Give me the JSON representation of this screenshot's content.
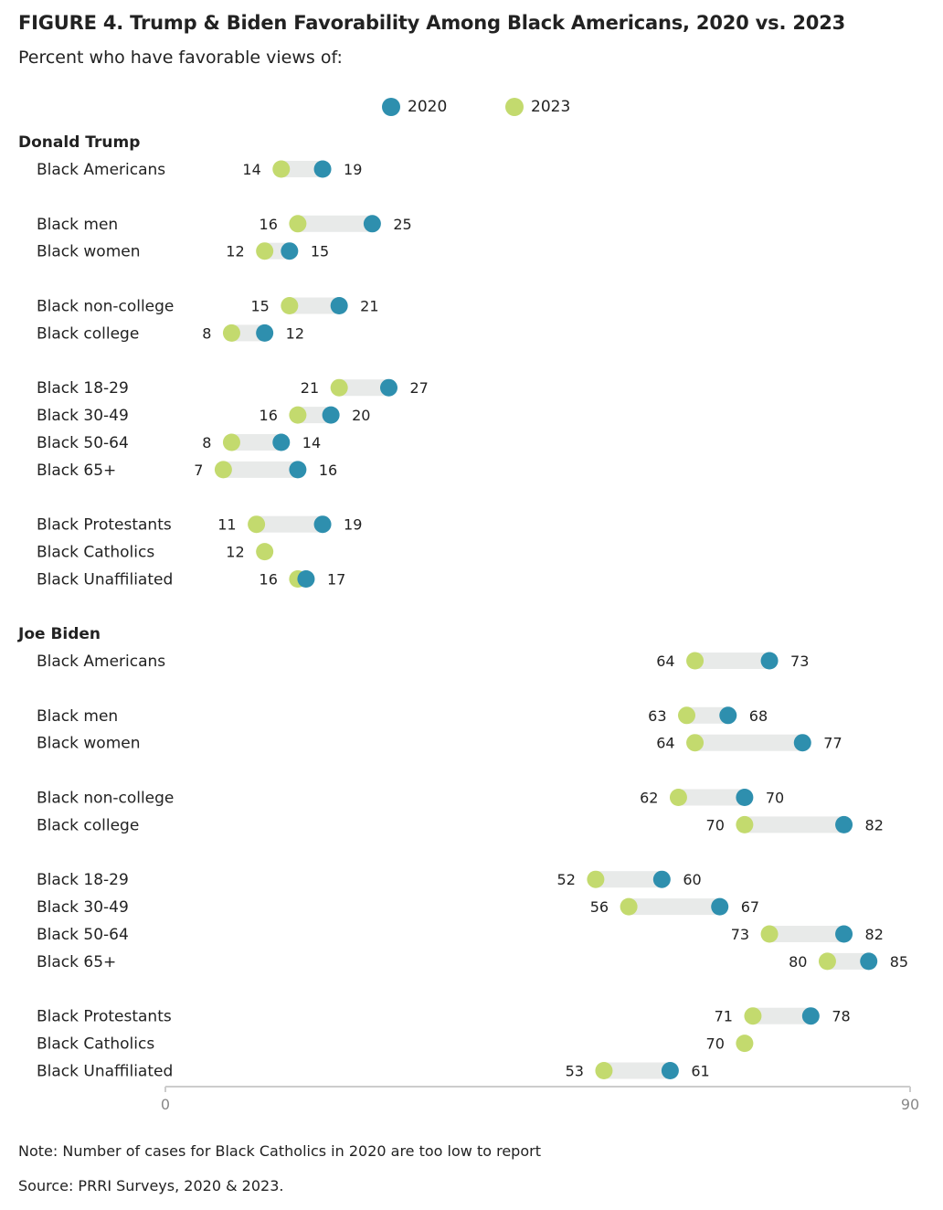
{
  "title": "FIGURE 4. Trump & Biden Favorability Among Black Americans, 2020 vs. 2023",
  "subtitle": "Percent who have favorable views of:",
  "legend": [
    {
      "label": "2020",
      "color": "#2e8fae"
    },
    {
      "label": "2023",
      "color": "#c3da6e"
    }
  ],
  "colors": {
    "y2020": "#2e8fae",
    "y2023": "#c3da6e",
    "bar": "#e8eae9",
    "axis": "#cccccc"
  },
  "note": "Note: Number of cases for Black Catholics in 2020 are too low to report",
  "source": "Source: PRRI Surveys, 2020 & 2023.",
  "chart_data": {
    "type": "dot-range",
    "xlim": [
      0,
      90
    ],
    "x_ticks": [
      "0",
      "90"
    ],
    "grid": false,
    "legend_position": "top-center",
    "sections": [
      {
        "name": "Donald Trump",
        "rows": [
          {
            "label": "Black Americans",
            "v2020": 19,
            "v2023": 14
          },
          {
            "label": "Black men",
            "v2020": 25,
            "v2023": 16
          },
          {
            "label": "Black women",
            "v2020": 15,
            "v2023": 12
          },
          {
            "label": "Black non-college",
            "v2020": 21,
            "v2023": 15
          },
          {
            "label": "Black college",
            "v2020": 12,
            "v2023": 8
          },
          {
            "label": "Black 18-29",
            "v2020": 27,
            "v2023": 21
          },
          {
            "label": "Black 30-49",
            "v2020": 20,
            "v2023": 16
          },
          {
            "label": "Black 50-64",
            "v2020": 14,
            "v2023": 8
          },
          {
            "label": "Black 65+",
            "v2020": 16,
            "v2023": 7
          },
          {
            "label": "Black Protestants",
            "v2020": 19,
            "v2023": 11
          },
          {
            "label": "Black Catholics",
            "v2020": null,
            "v2023": 12
          },
          {
            "label": "Black Unaffiliated",
            "v2020": 17,
            "v2023": 16
          }
        ]
      },
      {
        "name": "Joe Biden",
        "rows": [
          {
            "label": "Black Americans",
            "v2020": 73,
            "v2023": 64
          },
          {
            "label": "Black men",
            "v2020": 68,
            "v2023": 63
          },
          {
            "label": "Black women",
            "v2020": 77,
            "v2023": 64
          },
          {
            "label": "Black non-college",
            "v2020": 70,
            "v2023": 62
          },
          {
            "label": "Black college",
            "v2020": 82,
            "v2023": 70
          },
          {
            "label": "Black 18-29",
            "v2020": 60,
            "v2023": 52
          },
          {
            "label": "Black 30-49",
            "v2020": 67,
            "v2023": 56
          },
          {
            "label": "Black 50-64",
            "v2020": 82,
            "v2023": 73
          },
          {
            "label": "Black 65+",
            "v2020": 85,
            "v2023": 80
          },
          {
            "label": "Black Protestants",
            "v2020": 78,
            "v2023": 71
          },
          {
            "label": "Black Catholics",
            "v2020": null,
            "v2023": 70
          },
          {
            "label": "Black Unaffiliated",
            "v2020": 61,
            "v2023": 53
          }
        ]
      }
    ]
  }
}
